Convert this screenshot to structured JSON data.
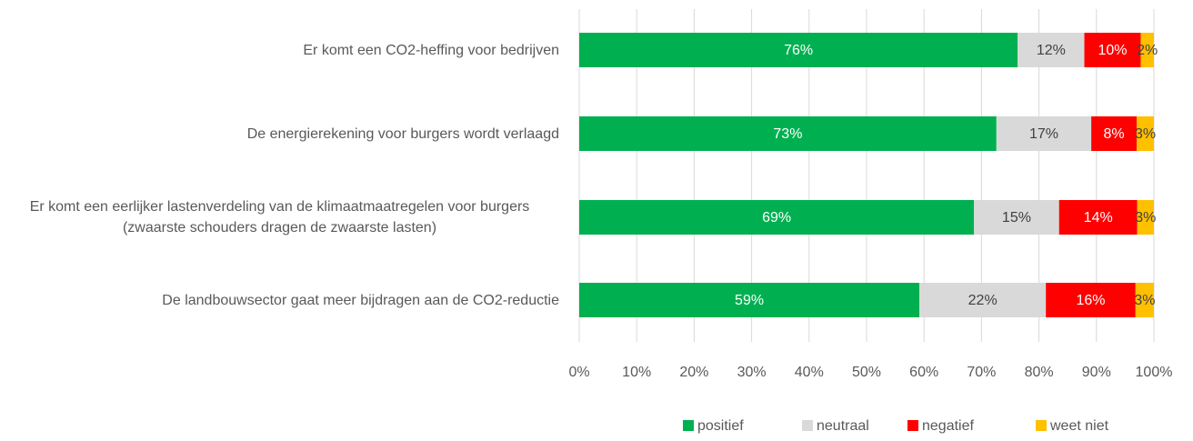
{
  "chart_data": {
    "type": "stacked-bar-horizontal",
    "categories": [
      "Er komt een CO2-heffing voor bedrijven",
      "De energierekening voor burgers wordt verlaagd",
      "Er komt een eerlijker lastenverdeling van de klimaatmaatregelen voor burgers (zwaarste schouders dragen de zwaarste lasten)",
      "De landbouwsector gaat meer bijdragen aan de CO2-reductie"
    ],
    "series": [
      {
        "name": "positief",
        "color": "#00b050",
        "values": [
          76.3,
          72.6,
          68.7,
          59.2
        ],
        "value_labels": [
          "76%",
          "73%",
          "69%",
          "59%"
        ]
      },
      {
        "name": "neutraal",
        "color": "#d9d9d9",
        "values": [
          11.6,
          16.5,
          14.8,
          22.0
        ],
        "value_labels": [
          "12%",
          "17%",
          "15%",
          "22%"
        ]
      },
      {
        "name": "negatief",
        "color": "#ff0000",
        "values": [
          9.8,
          7.9,
          13.6,
          15.6
        ],
        "value_labels": [
          "10%",
          "8%",
          "14%",
          "16%"
        ]
      },
      {
        "name": "weet niet",
        "color": "#ffc000",
        "values": [
          2.3,
          3.0,
          2.9,
          3.2
        ],
        "value_labels": [
          "2%",
          "3%",
          "3%",
          "3%"
        ]
      }
    ],
    "xlim": [
      0,
      100
    ],
    "xticks": [
      {
        "value": 0,
        "label": "0%"
      },
      {
        "value": 10,
        "label": "10%"
      },
      {
        "value": 20,
        "label": "20%"
      },
      {
        "value": 30,
        "label": "30%"
      },
      {
        "value": 40,
        "label": "40%"
      },
      {
        "value": 50,
        "label": "50%"
      },
      {
        "value": 60,
        "label": "60%"
      },
      {
        "value": 70,
        "label": "70%"
      },
      {
        "value": 80,
        "label": "80%"
      },
      {
        "value": 90,
        "label": "90%"
      },
      {
        "value": 100,
        "label": "100%"
      }
    ],
    "grid": true,
    "legend": "bottom"
  }
}
